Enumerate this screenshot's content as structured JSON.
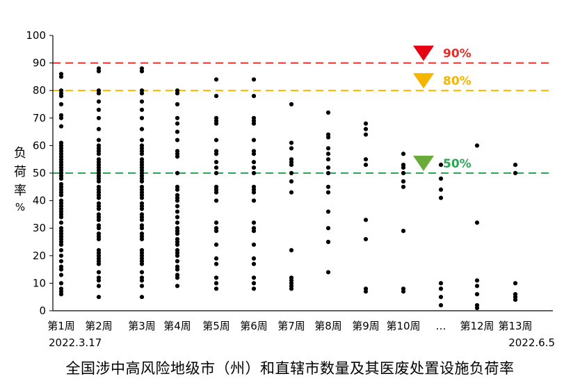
{
  "chart_data": {
    "type": "scatter",
    "title": "全国涉中高风险地级市（州）和直辖市数量及其医废处置设施负荷率",
    "ylabel": "负荷率%",
    "ylabel_chars": [
      "负",
      "荷",
      "率",
      "%"
    ],
    "ylim": [
      0,
      100
    ],
    "yticks": [
      0,
      10,
      20,
      30,
      40,
      50,
      60,
      70,
      80,
      90,
      100
    ],
    "grid": false,
    "categories": [
      "第1周",
      "第2周",
      "第3周",
      "第4周",
      "第5周",
      "第6周",
      "第7周",
      "第8周",
      "第9周",
      "第10周",
      "…",
      "第12周",
      "第13周"
    ],
    "start_date_label": "2022.3.17",
    "end_date_label": "2022.6.5",
    "thresholds": [
      {
        "value": 90,
        "label": "90%",
        "color": "#e0312b",
        "marker_color": "#e60012"
      },
      {
        "value": 80,
        "label": "80%",
        "color": "#f5b400",
        "marker_color": "#f5b400"
      },
      {
        "value": 50,
        "label": "50%",
        "color": "#2ca455",
        "marker_color": "#6aaa3a"
      }
    ],
    "point_color": "#000000",
    "points": [
      [
        86,
        85,
        80,
        79,
        78,
        75,
        71,
        70,
        67,
        61,
        60,
        59,
        58,
        57,
        56,
        55,
        54,
        53,
        52,
        51,
        50,
        49,
        48,
        46,
        45,
        44,
        43,
        42,
        40,
        39,
        38,
        37,
        36,
        35,
        34,
        32,
        30,
        29,
        28,
        27,
        26,
        25,
        24,
        22,
        20,
        18,
        16,
        15,
        13,
        10,
        8,
        7,
        6
      ],
      [
        88,
        87,
        80,
        79,
        76,
        73,
        70,
        66,
        62,
        60,
        59,
        58,
        57,
        55,
        54,
        53,
        52,
        51,
        50,
        49,
        48,
        47,
        45,
        44,
        43,
        42,
        41,
        39,
        38,
        37,
        35,
        34,
        33,
        31,
        30,
        28,
        27,
        26,
        22,
        21,
        20,
        19,
        18,
        17,
        14,
        12,
        11,
        9,
        5
      ],
      [
        88,
        87,
        80,
        79,
        76,
        73,
        70,
        66,
        62,
        60,
        59,
        58,
        57,
        55,
        54,
        53,
        52,
        51,
        50,
        49,
        48,
        47,
        45,
        44,
        43,
        42,
        41,
        39,
        38,
        37,
        35,
        34,
        33,
        31,
        30,
        28,
        27,
        26,
        22,
        21,
        20,
        19,
        18,
        17,
        14,
        12,
        11,
        9,
        5
      ],
      [
        80,
        79,
        75,
        70,
        68,
        65,
        62,
        58,
        57,
        56,
        50,
        45,
        44,
        42,
        41,
        40,
        38,
        36,
        34,
        32,
        30,
        29,
        28,
        26,
        25,
        24,
        22,
        21,
        20,
        18,
        16,
        15,
        13,
        12,
        9
      ],
      [
        84,
        78,
        70,
        69,
        68,
        62,
        58,
        57,
        54,
        52,
        50,
        45,
        44,
        43,
        40,
        32,
        30,
        29,
        24,
        19,
        17,
        12,
        10,
        8
      ],
      [
        84,
        78,
        70,
        69,
        68,
        62,
        58,
        57,
        54,
        52,
        50,
        45,
        44,
        43,
        40,
        32,
        30,
        29,
        24,
        19,
        17,
        12,
        10,
        8
      ],
      [
        75,
        61,
        59,
        55,
        54,
        53,
        50,
        47,
        43,
        22,
        12,
        11,
        10,
        9,
        8
      ],
      [
        72,
        64,
        63,
        59,
        57,
        55,
        52,
        50,
        45,
        43,
        36,
        30,
        25,
        14
      ],
      [
        68,
        66,
        64,
        55,
        53,
        33,
        26,
        8,
        7
      ],
      [
        57,
        53,
        52,
        50,
        47,
        45,
        29,
        8,
        7
      ],
      [
        53,
        48,
        44,
        41,
        10,
        8,
        5,
        2
      ],
      [
        60,
        32,
        11,
        9,
        6,
        2,
        1
      ],
      [
        53,
        50,
        10,
        6,
        5,
        4
      ]
    ]
  }
}
